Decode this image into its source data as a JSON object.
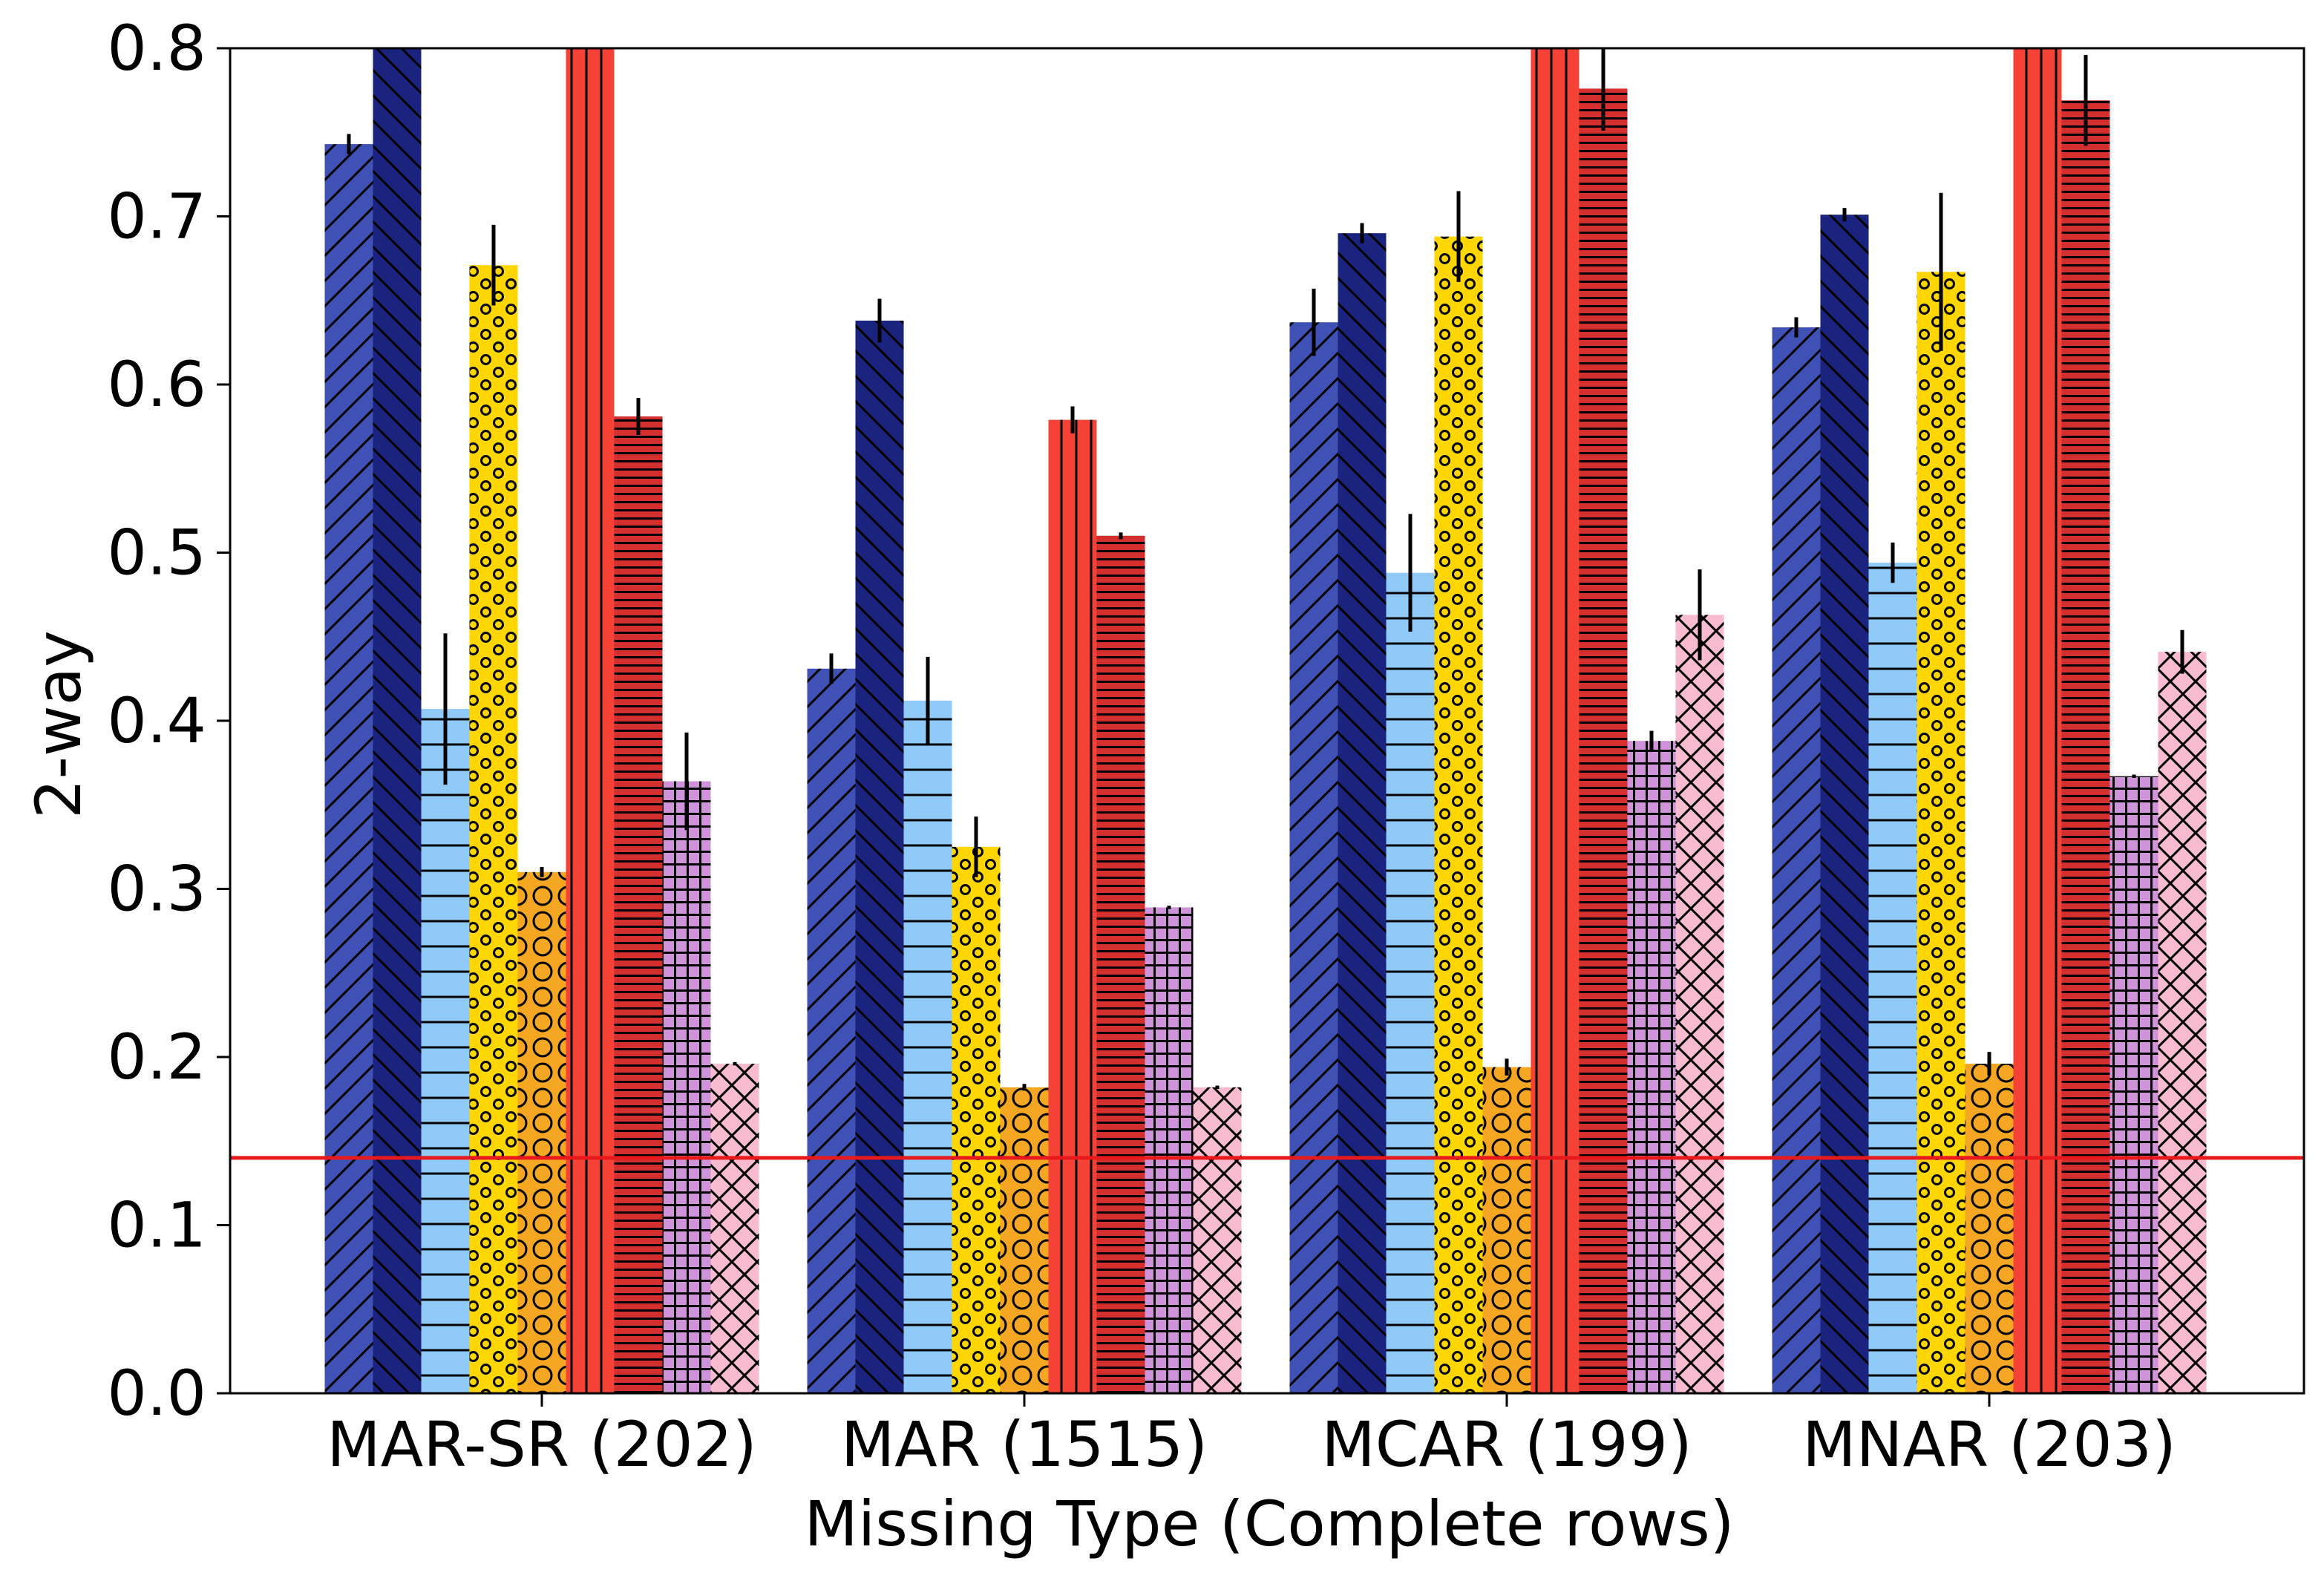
{
  "chart_data": {
    "type": "bar",
    "xlabel": "Missing Type (Complete rows)",
    "ylabel": "2-way",
    "ylim": [
      0,
      0.8
    ],
    "yticks": [
      "0.0",
      "0.1",
      "0.2",
      "0.3",
      "0.4",
      "0.5",
      "0.6",
      "0.7",
      "0.8"
    ],
    "grid": false,
    "legend": "none",
    "categories": [
      "MAR-SR (202)",
      "MAR (1515)",
      "MCAR (199)",
      "MNAR (203)"
    ],
    "reference_line": {
      "y": 0.14,
      "color": "#e8191c"
    },
    "series": [
      {
        "color": "#3f51b5",
        "pattern": "diag-up",
        "values": [
          0.743,
          0.431,
          0.637,
          0.634
        ],
        "errors": [
          0.006,
          0.009,
          0.02,
          0.006
        ]
      },
      {
        "color": "#1a237e",
        "pattern": "diag-down",
        "values": [
          0.8,
          0.638,
          0.69,
          0.701
        ],
        "errors": [
          0.0,
          0.013,
          0.006,
          0.004
        ]
      },
      {
        "color": "#90caf9",
        "pattern": "hlines",
        "values": [
          0.407,
          0.412,
          0.488,
          0.494
        ],
        "errors": [
          0.045,
          0.026,
          0.035,
          0.012
        ]
      },
      {
        "color": "#ffd600",
        "pattern": "small-circles",
        "values": [
          0.671,
          0.325,
          0.688,
          0.667
        ],
        "errors": [
          0.024,
          0.018,
          0.027,
          0.047
        ]
      },
      {
        "color": "#f5a623",
        "pattern": "big-circles",
        "values": [
          0.31,
          0.182,
          0.194,
          0.196
        ],
        "errors": [
          0.003,
          0.002,
          0.005,
          0.007
        ]
      },
      {
        "color": "#f44336",
        "pattern": "vlines",
        "values": [
          0.8,
          0.579,
          0.8,
          0.8
        ],
        "errors": [
          0.0,
          0.008,
          0.0,
          0.0
        ]
      },
      {
        "color": "#d32f2f",
        "pattern": "dense-hlines",
        "values": [
          0.581,
          0.51,
          0.776,
          0.769
        ],
        "errors": [
          0.011,
          0.002,
          0.025,
          0.027
        ]
      },
      {
        "color": "#ce93d8",
        "pattern": "grid",
        "values": [
          0.364,
          0.289,
          0.388,
          0.367
        ],
        "errors": [
          0.029,
          0.001,
          0.006,
          0.001
        ]
      },
      {
        "color": "#f8bbd0",
        "pattern": "crosshatch",
        "values": [
          0.196,
          0.182,
          0.463,
          0.441
        ],
        "errors": [
          0.001,
          0.001,
          0.027,
          0.013
        ]
      }
    ]
  }
}
